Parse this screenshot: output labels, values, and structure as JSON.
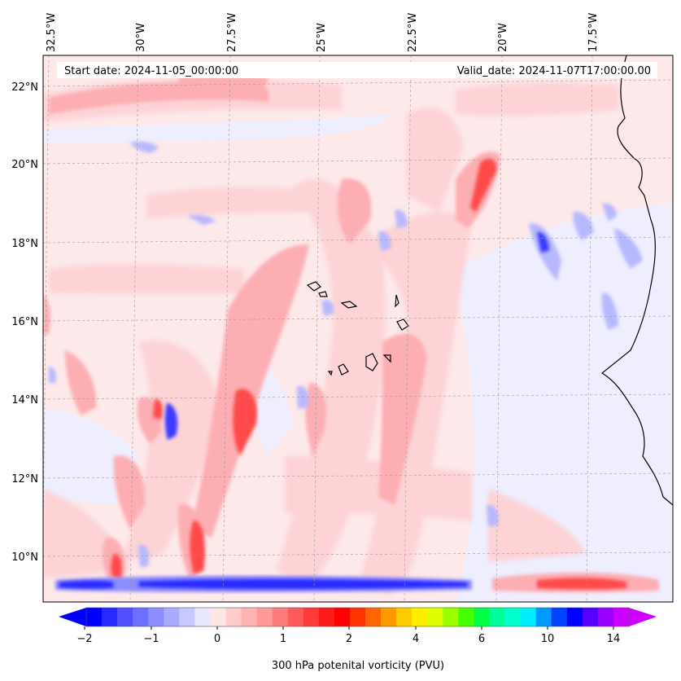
{
  "map": {
    "start_date_text": "Start date: 2024-11-05_00:00:00",
    "valid_date_text": "Valid_date: 2024-11-07T17:00:00.00",
    "lon_labels": [
      "32.5°W",
      "30°W",
      "27.5°W",
      "25°W",
      "22.5°W",
      "20°W",
      "17.5°W"
    ],
    "lat_labels": [
      "22°N",
      "20°N",
      "18°N",
      "16°N",
      "14°N",
      "12°N",
      "10°N"
    ],
    "field": "300 hPa potenital vorticity (PVU)",
    "gridlines": true
  },
  "colorbar": {
    "title": "300 hPa potenital vorticity (PVU)",
    "ticks": [
      "−2",
      "−1",
      "0",
      "1",
      "2",
      "4",
      "6",
      "10",
      "14"
    ],
    "extend": "both",
    "colors": [
      "#0000ff",
      "#2a2aff",
      "#5050ff",
      "#6e6eff",
      "#8c8cff",
      "#aaaaff",
      "#c8c8ff",
      "#e8e8ff",
      "#ffe6e6",
      "#ffcccc",
      "#ffb3b3",
      "#ff9a9a",
      "#ff7a7a",
      "#ff5a5a",
      "#ff3a3a",
      "#ff1a1a",
      "#ff0000",
      "#ff3300",
      "#ff6600",
      "#ff9900",
      "#ffcc00",
      "#ffee00",
      "#ddff00",
      "#99ff00",
      "#44ff00",
      "#00ff44",
      "#00ff99",
      "#00ffcc",
      "#00eeff",
      "#0099ff",
      "#0044ff",
      "#0000ff",
      "#5500ff",
      "#9900ff",
      "#cc00ff"
    ],
    "under_color": "#0000ff",
    "over_color": "#cc00ff"
  },
  "colors": {
    "background_field": "#f0f0ff",
    "coastline": "#000000"
  }
}
